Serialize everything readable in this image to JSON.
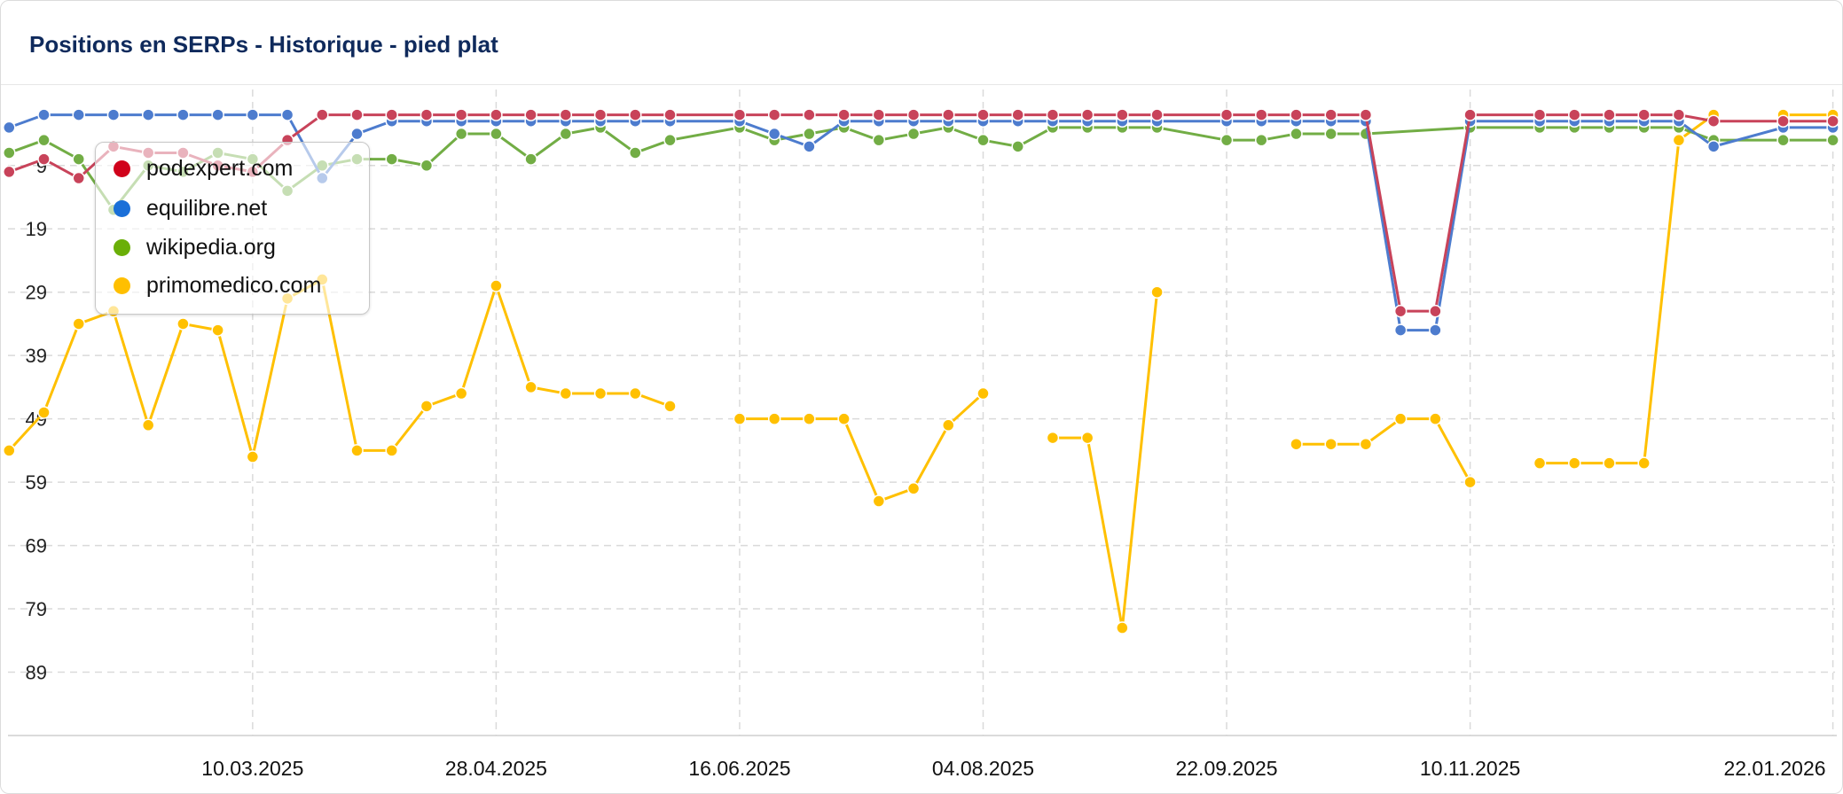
{
  "header": {
    "title": "Positions en SERPs - Historique - pied plat"
  },
  "chart_data": {
    "type": "line",
    "title": "Positions en SERPs - Historique - pied plat",
    "xlabel": "",
    "ylabel": "",
    "y_inverted": true,
    "ylim": [
      -3,
      99
    ],
    "y_ticks": [
      9,
      19,
      29,
      39,
      49,
      59,
      69,
      79,
      89
    ],
    "x_ticks": [
      "10.03.2025",
      "28.04.2025",
      "16.06.2025",
      "04.08.2025",
      "22.09.2025",
      "10.11.2025",
      "22.01.2026"
    ],
    "grid": true,
    "legend_position": "top-left",
    "x": [
      "20.01.2025",
      "27.01.2025",
      "03.02.2025",
      "10.02.2025",
      "17.02.2025",
      "24.02.2025",
      "03.03.2025",
      "10.03.2025",
      "17.03.2025",
      "24.03.2025",
      "31.03.2025",
      "07.04.2025",
      "14.04.2025",
      "21.04.2025",
      "28.04.2025",
      "05.05.2025",
      "12.05.2025",
      "19.05.2025",
      "26.05.2025",
      "02.06.2025",
      "09.06.2025",
      "16.06.2025",
      "23.06.2025",
      "30.06.2025",
      "07.07.2025",
      "14.07.2025",
      "21.07.2025",
      "28.07.2025",
      "04.08.2025",
      "11.08.2025",
      "18.08.2025",
      "25.08.2025",
      "01.09.2025",
      "08.09.2025",
      "15.09.2025",
      "22.09.2025",
      "29.09.2025",
      "06.10.2025",
      "13.10.2025",
      "20.10.2025",
      "27.10.2025",
      "03.11.2025",
      "10.11.2025",
      "17.11.2025",
      "24.11.2025",
      "01.12.2025",
      "08.12.2025",
      "15.12.2025",
      "22.12.2025",
      "29.12.2025",
      "05.01.2026",
      "12.01.2026",
      "22.01.2026"
    ],
    "series": [
      {
        "name": "podexpert.com",
        "color": "#c8435a",
        "legend_color": "#d0021b",
        "values": [
          10,
          8,
          11,
          6,
          7,
          7,
          9,
          10,
          5,
          1,
          1,
          1,
          1,
          1,
          1,
          1,
          1,
          1,
          1,
          1,
          null,
          1,
          1,
          1,
          1,
          1,
          1,
          1,
          1,
          1,
          1,
          1,
          1,
          1,
          null,
          1,
          1,
          1,
          1,
          1,
          32,
          32,
          1,
          null,
          1,
          1,
          1,
          1,
          1,
          2,
          null,
          2,
          2
        ]
      },
      {
        "name": "equilibre.net",
        "color": "#4d7cce",
        "legend_color": "#1a6fd8",
        "values": [
          3,
          1,
          1,
          1,
          1,
          1,
          1,
          1,
          1,
          11,
          4,
          2,
          2,
          2,
          2,
          2,
          2,
          2,
          2,
          2,
          null,
          2,
          4,
          6,
          2,
          2,
          2,
          2,
          2,
          2,
          2,
          2,
          2,
          2,
          null,
          2,
          2,
          2,
          2,
          2,
          35,
          35,
          2,
          null,
          2,
          2,
          2,
          2,
          2,
          6,
          null,
          3,
          3
        ]
      },
      {
        "name": "wikipedia.org",
        "color": "#72ad45",
        "legend_color": "#6aaf08",
        "values": [
          7,
          5,
          8,
          16,
          9,
          10,
          7,
          8,
          13,
          9,
          8,
          8,
          9,
          4,
          4,
          8,
          4,
          3,
          7,
          5,
          null,
          3,
          5,
          4,
          3,
          5,
          4,
          3,
          5,
          6,
          3,
          3,
          3,
          3,
          null,
          5,
          5,
          4,
          4,
          4,
          null,
          null,
          3,
          null,
          3,
          3,
          3,
          3,
          3,
          5,
          null,
          5,
          5
        ]
      },
      {
        "name": "primomedico.com",
        "color": "#ffc000",
        "legend_color": "#ffbf00",
        "values": [
          54,
          48,
          34,
          32,
          50,
          34,
          35,
          55,
          30,
          27,
          54,
          54,
          47,
          45,
          28,
          44,
          45,
          45,
          45,
          47,
          null,
          49,
          49,
          49,
          49,
          62,
          60,
          50,
          45,
          null,
          52,
          52,
          82,
          29,
          null,
          null,
          null,
          53,
          53,
          53,
          49,
          49,
          59,
          null,
          56,
          56,
          56,
          56,
          5,
          1,
          null,
          1,
          1
        ]
      }
    ]
  }
}
